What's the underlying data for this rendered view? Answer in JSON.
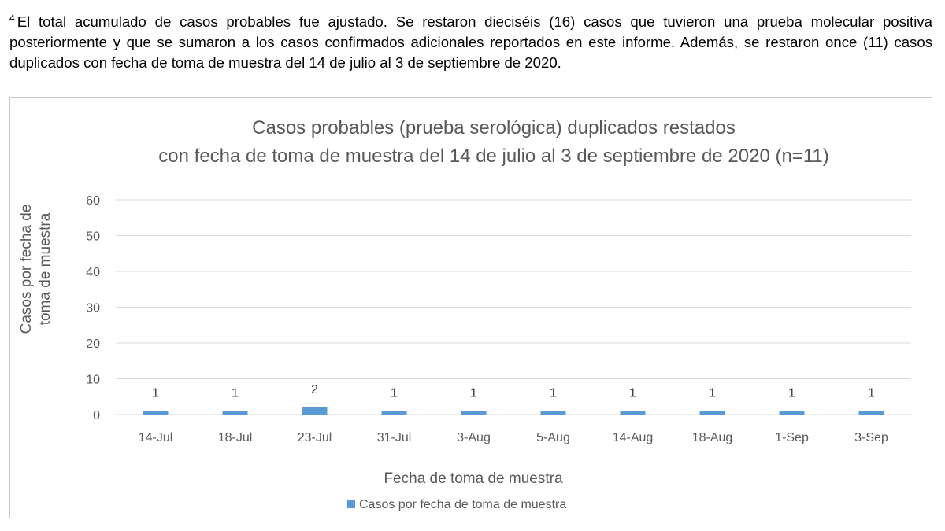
{
  "footnote": {
    "marker": "4",
    "text": "El total acumulado de casos probables fue ajustado. Se restaron dieciséis (16) casos que tuvieron una prueba molecular positiva posteriormente y que se sumaron a los casos confirmados adicionales reportados en este informe. Además, se restaron once (11) casos duplicados con fecha de toma de muestra del 14 de julio al 3 de septiembre de 2020."
  },
  "chart_data": {
    "type": "bar",
    "title": [
      "Casos probables (prueba serológica) duplicados restados",
      "con fecha de toma de muestra del 14 de julio al 3 de septiembre de 2020 (n=11)"
    ],
    "xlabel": "Fecha de toma de muestra",
    "ylabel": [
      "Casos por fecha de",
      "toma de muestra"
    ],
    "categories": [
      "14-Jul",
      "18-Jul",
      "23-Jul",
      "31-Jul",
      "3-Aug",
      "5-Aug",
      "14-Aug",
      "18-Aug",
      "1-Sep",
      "3-Sep"
    ],
    "series": [
      {
        "name": "Casos por fecha de toma de muestra",
        "values": [
          1,
          1,
          2,
          1,
          1,
          1,
          1,
          1,
          1,
          1
        ],
        "color": "#5b9bd5"
      }
    ],
    "ylim": [
      0,
      60
    ],
    "yticks": [
      0,
      10,
      20,
      30,
      40,
      50,
      60
    ],
    "grid": true,
    "data_labels": true,
    "legend": "bottom-center",
    "gridline_color": "#d9d9d9"
  }
}
